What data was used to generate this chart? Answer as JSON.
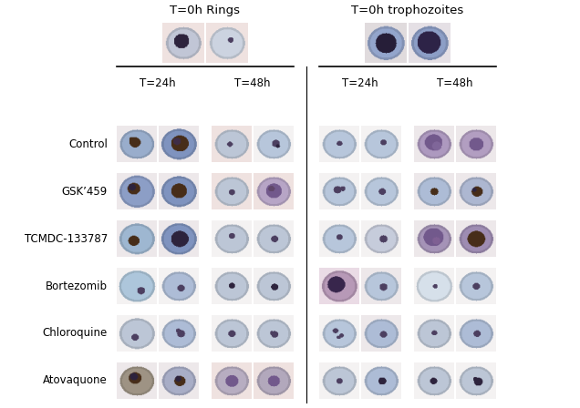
{
  "title_rings": "T=0h Rings",
  "title_trophs": "T=0h trophozoites",
  "col_header_24": "T=24h",
  "col_header_48": "T=48h",
  "row_labels": [
    "Control",
    "GSK’459",
    "TCMDC-133787",
    "Bortezomib",
    "Chloroquine",
    "Atovaquone"
  ],
  "bg_color": "#ffffff",
  "fig_width": 6.36,
  "fig_height": 4.48,
  "dpi": 100
}
